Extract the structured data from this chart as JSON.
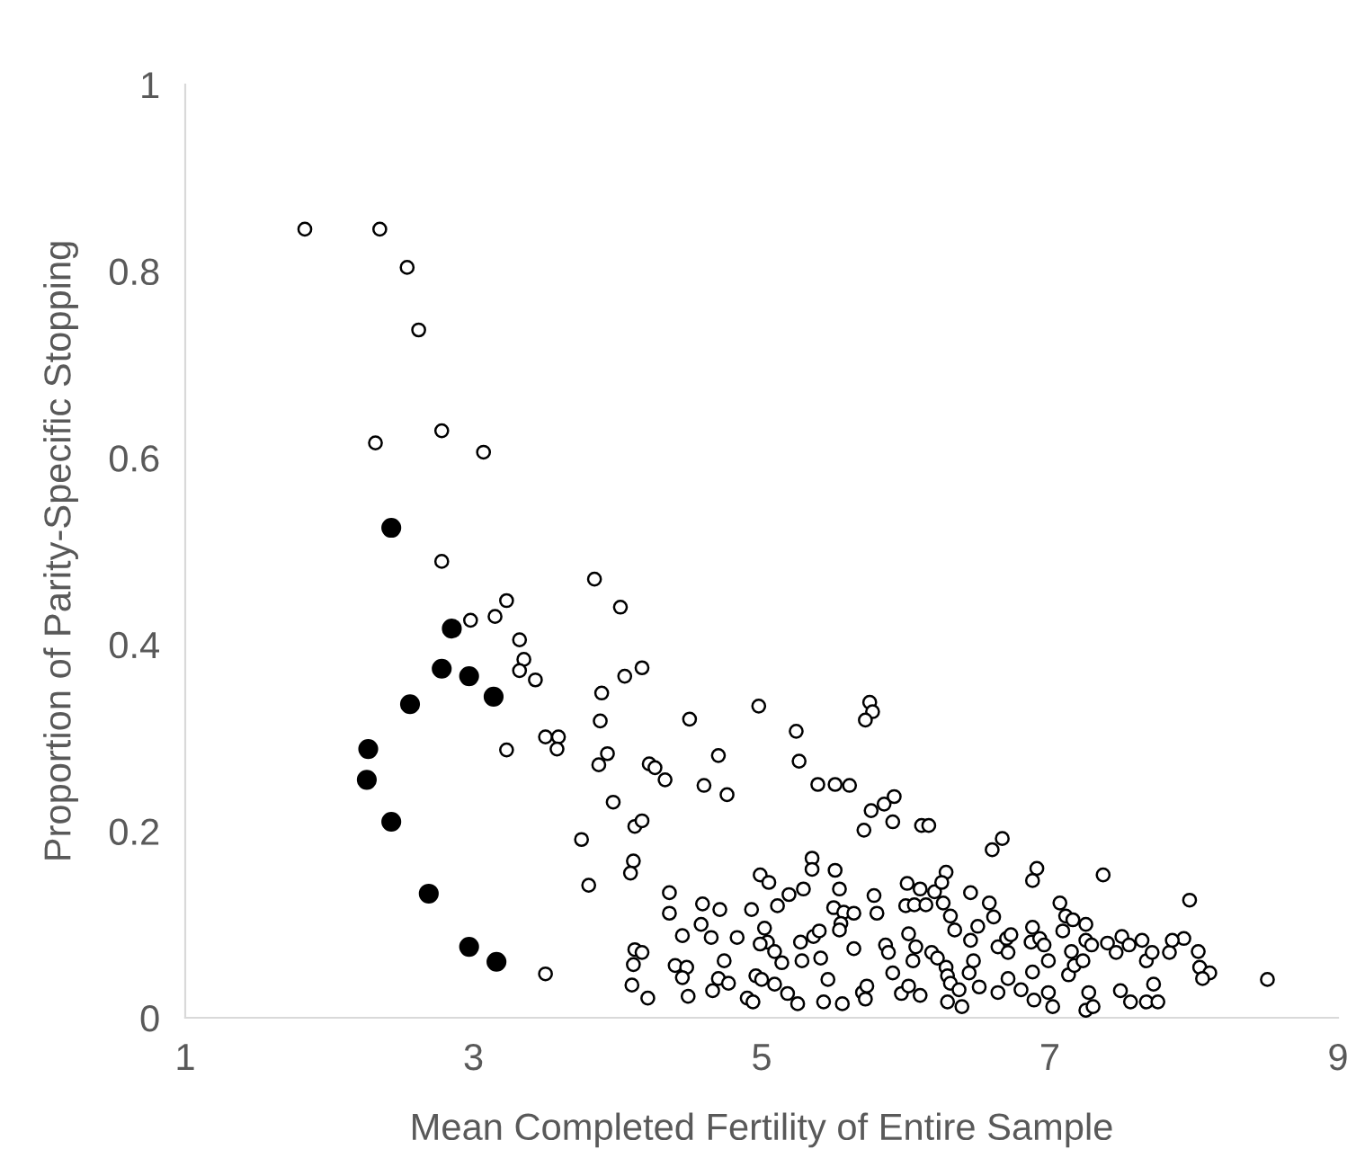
{
  "chart_data": {
    "type": "scatter",
    "xlabel": "Mean Completed Fertility of Entire Sample",
    "ylabel": "Proportion of Parity-Specific Stopping",
    "xlim": [
      1,
      9
    ],
    "xticks": [
      1,
      3,
      5,
      7,
      9
    ],
    "ylim": [
      0,
      1
    ],
    "yticks": [
      0,
      0.2,
      0.4,
      0.6,
      0.8,
      1
    ],
    "grid": false,
    "marker": "circle",
    "series": [
      {
        "color": "#ffffff",
        "x": [
          1.83,
          2.35,
          2.54,
          2.62,
          2.32,
          2.78,
          3.07,
          2.78,
          2.98,
          3.15,
          3.23,
          3.32,
          3.35,
          3.32,
          3.43,
          3.23,
          3.5,
          3.59,
          3.58,
          3.5,
          3.84,
          4.02,
          4.05,
          4.17,
          3.89,
          3.88,
          3.93,
          3.87,
          3.97,
          3.75,
          3.8,
          4.12,
          4.17,
          4.11,
          4.09,
          4.22,
          4.26,
          4.33,
          4.5,
          4.6,
          4.7,
          4.76,
          4.98,
          5.24,
          5.26,
          5.39,
          5.51,
          5.61,
          5.75,
          5.77,
          5.72,
          5.76,
          5.85,
          5.92,
          5.71,
          5.91,
          6.11,
          6.16,
          6.6,
          6.67,
          6.91,
          6.88,
          7.37,
          7.97,
          8.51,
          7.93,
          8.03,
          8.04,
          8.11,
          8.06,
          4.36,
          4.36,
          4.45,
          4.58,
          4.59,
          4.71,
          4.65,
          4.74,
          4.83,
          4.4,
          4.48,
          4.45,
          4.49,
          4.7,
          4.77,
          4.66,
          4.12,
          4.17,
          4.11,
          4.1,
          4.21,
          4.93,
          4.99,
          5.05,
          5.02,
          5.04,
          4.99,
          5.09,
          5.14,
          4.96,
          5.0,
          5.09,
          4.9,
          4.94,
          5.18,
          5.25,
          5.11,
          5.19,
          5.29,
          5.35,
          5.35,
          5.51,
          5.54,
          5.5,
          5.57,
          5.64,
          5.27,
          5.36,
          5.4,
          5.55,
          5.54,
          5.41,
          5.46,
          5.28,
          5.43,
          5.56,
          5.64,
          5.7,
          5.73,
          5.72,
          5.78,
          5.8,
          5.86,
          5.88,
          5.91,
          5.97,
          6.01,
          6.0,
          6.06,
          6.1,
          6.2,
          6.14,
          6.02,
          6.07,
          6.05,
          6.02,
          6.1,
          6.18,
          6.22,
          6.28,
          6.25,
          6.26,
          6.31,
          6.34,
          6.28,
          6.29,
          6.31,
          6.37,
          6.29,
          6.39,
          6.45,
          6.5,
          6.45,
          6.47,
          6.44,
          6.51,
          6.58,
          6.61,
          6.64,
          6.7,
          6.73,
          6.71,
          6.64,
          6.71,
          6.8,
          6.88,
          6.87,
          6.93,
          6.96,
          6.99,
          6.88,
          6.89,
          6.99,
          7.02,
          7.07,
          7.11,
          7.09,
          7.16,
          7.15,
          7.13,
          7.17,
          7.25,
          7.25,
          7.29,
          7.23,
          7.27,
          7.25,
          7.3,
          7.4,
          7.46,
          7.5,
          7.55,
          7.49,
          7.56,
          7.64,
          7.67,
          7.71,
          7.72,
          7.67,
          7.75,
          7.83,
          7.85
        ],
        "values": [
          0.845,
          0.845,
          0.804,
          0.737,
          0.616,
          0.629,
          0.606,
          0.489,
          0.426,
          0.43,
          0.447,
          0.405,
          0.384,
          0.372,
          0.362,
          0.287,
          0.301,
          0.301,
          0.288,
          0.047,
          0.47,
          0.44,
          0.366,
          0.375,
          0.348,
          0.318,
          0.283,
          0.271,
          0.231,
          0.191,
          0.142,
          0.205,
          0.211,
          0.168,
          0.155,
          0.272,
          0.268,
          0.255,
          0.32,
          0.249,
          0.281,
          0.239,
          0.334,
          0.307,
          0.275,
          0.25,
          0.25,
          0.249,
          0.338,
          0.328,
          0.319,
          0.222,
          0.229,
          0.237,
          0.201,
          0.21,
          0.206,
          0.206,
          0.18,
          0.192,
          0.16,
          0.147,
          0.153,
          0.126,
          0.041,
          0.085,
          0.071,
          0.054,
          0.048,
          0.042,
          0.134,
          0.112,
          0.088,
          0.1,
          0.122,
          0.116,
          0.086,
          0.061,
          0.086,
          0.056,
          0.054,
          0.043,
          0.023,
          0.042,
          0.037,
          0.029,
          0.073,
          0.07,
          0.057,
          0.035,
          0.021,
          0.116,
          0.153,
          0.145,
          0.096,
          0.081,
          0.079,
          0.071,
          0.059,
          0.045,
          0.041,
          0.036,
          0.021,
          0.017,
          0.026,
          0.015,
          0.12,
          0.132,
          0.138,
          0.171,
          0.159,
          0.158,
          0.138,
          0.118,
          0.113,
          0.112,
          0.081,
          0.087,
          0.093,
          0.101,
          0.094,
          0.064,
          0.041,
          0.061,
          0.017,
          0.015,
          0.074,
          0.027,
          0.034,
          0.02,
          0.131,
          0.112,
          0.078,
          0.07,
          0.048,
          0.026,
          0.144,
          0.12,
          0.121,
          0.138,
          0.135,
          0.121,
          0.09,
          0.076,
          0.061,
          0.034,
          0.024,
          0.07,
          0.064,
          0.156,
          0.145,
          0.123,
          0.109,
          0.094,
          0.054,
          0.045,
          0.037,
          0.03,
          0.017,
          0.012,
          0.134,
          0.098,
          0.083,
          0.061,
          0.048,
          0.033,
          0.123,
          0.108,
          0.076,
          0.085,
          0.089,
          0.07,
          0.027,
          0.042,
          0.03,
          0.097,
          0.081,
          0.085,
          0.078,
          0.061,
          0.049,
          0.019,
          0.027,
          0.012,
          0.123,
          0.109,
          0.093,
          0.105,
          0.071,
          0.046,
          0.056,
          0.1,
          0.083,
          0.078,
          0.061,
          0.027,
          0.008,
          0.012,
          0.08,
          0.07,
          0.087,
          0.078,
          0.029,
          0.017,
          0.083,
          0.061,
          0.07,
          0.036,
          0.017,
          0.017,
          0.07,
          0.083
        ]
      },
      {
        "color": "#000000",
        "x": [
          2.43,
          2.85,
          2.78,
          2.97,
          3.14,
          2.56,
          2.27,
          2.26,
          2.43,
          2.69,
          2.97,
          3.16
        ],
        "values": [
          0.525,
          0.417,
          0.374,
          0.366,
          0.344,
          0.336,
          0.288,
          0.255,
          0.21,
          0.133,
          0.076,
          0.06
        ]
      }
    ]
  }
}
